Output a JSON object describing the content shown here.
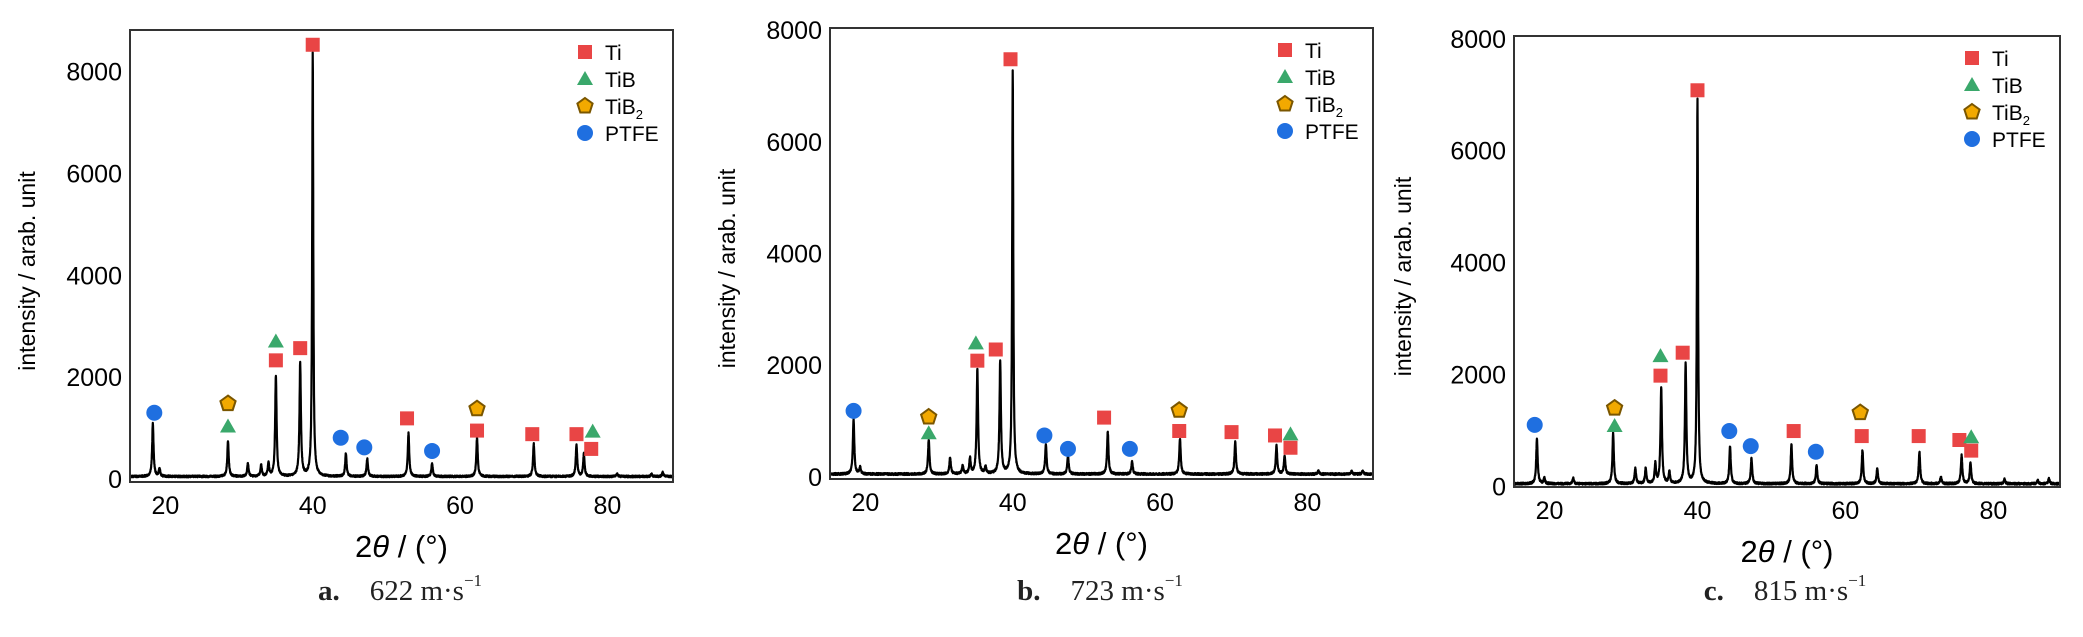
{
  "legend_colors": {
    "Ti": "#e94545",
    "TiB": "#3aa86b",
    "TiB2": "#f2a900",
    "TiB2_stroke": "#7a5600",
    "PTFE": "#1f6fe0"
  },
  "chart_data": [
    {
      "type": "line",
      "panel_label": "a.",
      "caption": "622 m·s",
      "caption_sup": "−1",
      "xlabel_num": "2",
      "xlabel_sym": "θ",
      "xlabel_unit": " / (°)",
      "ylabel": "intensity / arab. unit",
      "xlim": [
        15.2,
        88.9
      ],
      "ylim": [
        -60,
        8820
      ],
      "xticks": [
        "20",
        "40",
        "60",
        "80"
      ],
      "yticks": [
        "0",
        "2000",
        "4000",
        "6000",
        "8000"
      ],
      "legend": [
        {
          "key": "Ti",
          "label": "Ti",
          "sub": ""
        },
        {
          "key": "TiB",
          "label": "TiB",
          "sub": ""
        },
        {
          "key": "TiB2",
          "label": "TiB",
          "sub": "2"
        },
        {
          "key": "PTFE",
          "label": "PTFE",
          "sub": ""
        }
      ],
      "legend_position": "top-right",
      "peaks": [
        [
          18.3,
          1040
        ],
        [
          19.2,
          150
        ],
        [
          28.5,
          690
        ],
        [
          31.2,
          250
        ],
        [
          33.0,
          220
        ],
        [
          34.0,
          250
        ],
        [
          35.0,
          1980
        ],
        [
          38.3,
          2220
        ],
        [
          40.0,
          8330
        ],
        [
          44.5,
          450
        ],
        [
          47.4,
          350
        ],
        [
          53.0,
          860
        ],
        [
          56.2,
          250
        ],
        [
          62.3,
          760
        ],
        [
          70.0,
          640
        ],
        [
          75.8,
          620
        ],
        [
          76.8,
          450
        ],
        [
          81.3,
          60
        ],
        [
          86.0,
          50
        ],
        [
          87.5,
          80
        ]
      ],
      "markers": [
        [
          "PTFE",
          18.5,
          1300
        ],
        [
          "TiB2",
          28.5,
          1480
        ],
        [
          "TiB",
          28.5,
          1030
        ],
        [
          "TiB",
          35.0,
          2700
        ],
        [
          "Ti",
          35.0,
          2330
        ],
        [
          "Ti",
          38.3,
          2570
        ],
        [
          "Ti",
          40.0,
          8530
        ],
        [
          "PTFE",
          43.8,
          810
        ],
        [
          "PTFE",
          47.0,
          620
        ],
        [
          "Ti",
          52.8,
          1190
        ],
        [
          "PTFE",
          56.2,
          550
        ],
        [
          "TiB2",
          62.3,
          1380
        ],
        [
          "Ti",
          62.3,
          950
        ],
        [
          "Ti",
          69.8,
          880
        ],
        [
          "Ti",
          75.8,
          880
        ],
        [
          "TiB",
          78.0,
          930
        ],
        [
          "Ti",
          77.8,
          590
        ]
      ]
    },
    {
      "type": "line",
      "panel_label": "b.",
      "caption": "723 m·s",
      "caption_sup": "−1",
      "xlabel_num": "2",
      "xlabel_sym": "θ",
      "xlabel_unit": " / (°)",
      "ylabel": "intensity / arab. unit",
      "xlim": [
        15.2,
        88.9
      ],
      "ylim": [
        -40,
        8040
      ],
      "xticks": [
        "20",
        "40",
        "60",
        "80"
      ],
      "yticks": [
        "0",
        "2000",
        "4000",
        "6000",
        "8000"
      ],
      "legend": [
        {
          "key": "Ti",
          "label": "Ti",
          "sub": ""
        },
        {
          "key": "TiB",
          "label": "TiB",
          "sub": ""
        },
        {
          "key": "TiB2",
          "label": "TiB",
          "sub": "2"
        },
        {
          "key": "PTFE",
          "label": "PTFE",
          "sub": ""
        }
      ],
      "legend_position": "top-right",
      "peaks": [
        [
          18.4,
          980
        ],
        [
          19.3,
          120
        ],
        [
          28.6,
          620
        ],
        [
          31.5,
          300
        ],
        [
          33.2,
          150
        ],
        [
          34.2,
          280
        ],
        [
          35.2,
          1890
        ],
        [
          36.3,
          130
        ],
        [
          38.3,
          2020
        ],
        [
          40.0,
          7240
        ],
        [
          44.5,
          545
        ],
        [
          47.5,
          330
        ],
        [
          52.9,
          760
        ],
        [
          56.2,
          230
        ],
        [
          62.7,
          640
        ],
        [
          70.2,
          580
        ],
        [
          75.8,
          510
        ],
        [
          76.9,
          330
        ],
        [
          81.5,
          60
        ],
        [
          86.0,
          50
        ],
        [
          87.5,
          60
        ]
      ],
      "markers": [
        [
          "PTFE",
          18.4,
          1180
        ],
        [
          "TiB2",
          28.6,
          1070
        ],
        [
          "TiB",
          28.6,
          780
        ],
        [
          "TiB",
          35.0,
          2390
        ],
        [
          "Ti",
          35.2,
          2080
        ],
        [
          "Ti",
          37.7,
          2280
        ],
        [
          "Ti",
          39.7,
          7480
        ],
        [
          "PTFE",
          44.3,
          740
        ],
        [
          "PTFE",
          47.5,
          500
        ],
        [
          "Ti",
          52.4,
          1060
        ],
        [
          "PTFE",
          55.9,
          500
        ],
        [
          "TiB2",
          62.6,
          1190
        ],
        [
          "Ti",
          62.6,
          820
        ],
        [
          "Ti",
          69.7,
          800
        ],
        [
          "Ti",
          75.6,
          740
        ],
        [
          "TiB",
          77.7,
          760
        ],
        [
          "Ti",
          77.7,
          520
        ]
      ]
    },
    {
      "type": "line",
      "panel_label": "c.",
      "caption": "815 m·s",
      "caption_sup": "−1",
      "xlabel_num": "2",
      "xlabel_sym": "θ",
      "xlabel_unit": " / (°)",
      "ylabel": "intensity / arab. unit",
      "xlim": [
        15.2,
        89.0
      ],
      "ylim": [
        -10,
        8050
      ],
      "xticks": [
        "20",
        "40",
        "60",
        "80"
      ],
      "yticks": [
        "0",
        "2000",
        "4000",
        "6000",
        "8000"
      ],
      "legend": [
        {
          "key": "Ti",
          "label": "Ti",
          "sub": ""
        },
        {
          "key": "TiB",
          "label": "TiB",
          "sub": ""
        },
        {
          "key": "TiB2",
          "label": "TiB",
          "sub": "2"
        },
        {
          "key": "PTFE",
          "label": "PTFE",
          "sub": ""
        }
      ],
      "legend_position": "top-right",
      "peaks": [
        [
          18.3,
          810
        ],
        [
          19.3,
          100
        ],
        [
          23.2,
          100
        ],
        [
          28.6,
          900
        ],
        [
          31.6,
          270
        ],
        [
          33.0,
          270
        ],
        [
          34.3,
          350
        ],
        [
          35.1,
          1710
        ],
        [
          36.2,
          200
        ],
        [
          38.4,
          2140
        ],
        [
          40.0,
          6860
        ],
        [
          44.4,
          670
        ],
        [
          47.3,
          450
        ],
        [
          52.7,
          700
        ],
        [
          56.1,
          340
        ],
        [
          62.3,
          600
        ],
        [
          64.3,
          270
        ],
        [
          70.0,
          570
        ],
        [
          72.9,
          120
        ],
        [
          75.7,
          510
        ],
        [
          76.9,
          380
        ],
        [
          81.5,
          80
        ],
        [
          86.0,
          60
        ],
        [
          87.5,
          90
        ]
      ],
      "markers": [
        [
          "PTFE",
          18.0,
          1100
        ],
        [
          "TiB2",
          28.8,
          1400
        ],
        [
          "TiB",
          28.8,
          1080
        ],
        [
          "TiB",
          35.0,
          2330
        ],
        [
          "Ti",
          35.0,
          1980
        ],
        [
          "Ti",
          38.0,
          2390
        ],
        [
          "Ti",
          40.0,
          7080
        ],
        [
          "PTFE",
          44.3,
          990
        ],
        [
          "PTFE",
          47.2,
          720
        ],
        [
          "Ti",
          53.0,
          990
        ],
        [
          "PTFE",
          56.0,
          620
        ],
        [
          "TiB2",
          62.0,
          1320
        ],
        [
          "Ti",
          62.2,
          900
        ],
        [
          "Ti",
          69.9,
          900
        ],
        [
          "Ti",
          75.4,
          830
        ],
        [
          "TiB",
          77.0,
          880
        ],
        [
          "Ti",
          77.0,
          640
        ]
      ]
    }
  ]
}
